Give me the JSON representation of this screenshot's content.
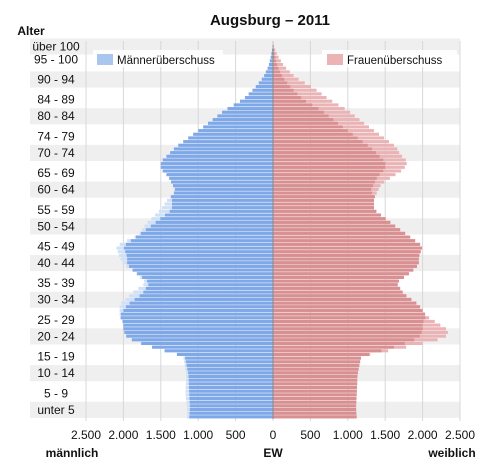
{
  "chart_data": {
    "type": "bar",
    "orientation": "horizontal",
    "title": "Augsburg – 2011",
    "y_axis_title": "Alter",
    "x_axis_unit": "EW",
    "x_left_label": "männlich",
    "x_right_label": "weiblich",
    "xlim": [
      -2500,
      2500
    ],
    "x_ticks": [
      "2.500",
      "2.000",
      "1.500",
      "1.000",
      "500",
      "0",
      "500",
      "1.000",
      "1.500",
      "2.000",
      "2.500"
    ],
    "grid": true,
    "legend_placement": "top",
    "age_range": [
      0,
      103
    ],
    "age_group_labels": [
      "über 100",
      "95 - 100",
      "90 - 94",
      "84 - 89",
      "80 - 84",
      "74 - 79",
      "70 - 74",
      "65 - 69",
      "60 - 64",
      "55 - 59",
      "50 - 54",
      "45 - 49",
      "40 - 44",
      "35 - 39",
      "30 - 34",
      "25 - 29",
      "20 - 24",
      "15 - 19",
      "10 - 14",
      "5 - 9",
      "unter 5"
    ],
    "age_group_label_ages": [
      101.5,
      98,
      92.5,
      87,
      82.5,
      77,
      72.5,
      67,
      62.5,
      57,
      52.5,
      47,
      42.5,
      37,
      32.5,
      27,
      22.5,
      17,
      12.5,
      7,
      2.5
    ],
    "series": [
      {
        "name": "Männerüberschuss",
        "color": "#cfe0f7",
        "overlay_color": "#7ea8e8",
        "age_points": [
          0,
          3,
          7,
          12,
          17,
          20,
          22,
          24,
          26,
          28,
          31,
          34,
          37,
          40,
          42,
          44,
          47,
          50,
          53,
          57,
          60,
          62,
          64,
          66,
          68,
          70,
          72,
          74,
          77,
          80,
          84,
          87,
          90,
          93,
          96,
          99,
          101,
          103
        ],
        "values": [
          1150,
          1150,
          1170,
          1160,
          1200,
          1700,
          1950,
          2000,
          2000,
          2050,
          2050,
          1900,
          1700,
          1850,
          2000,
          2050,
          2100,
          1800,
          1700,
          1500,
          1400,
          1300,
          1350,
          1400,
          1500,
          1500,
          1400,
          1300,
          1100,
          900,
          650,
          400,
          250,
          130,
          60,
          25,
          10,
          0
        ]
      },
      {
        "name": "Frauenüberschuss",
        "color": "#eab3b5",
        "overlay_color": "#d99092",
        "age_points": [
          0,
          3,
          7,
          12,
          17,
          20,
          22,
          24,
          26,
          28,
          31,
          34,
          37,
          40,
          42,
          44,
          47,
          50,
          53,
          57,
          60,
          62,
          64,
          66,
          68,
          70,
          72,
          74,
          77,
          80,
          84,
          87,
          90,
          93,
          96,
          99,
          101,
          103
        ],
        "values": [
          1120,
          1110,
          1120,
          1130,
          1180,
          1900,
          2300,
          2350,
          2200,
          2050,
          1950,
          1750,
          1650,
          1850,
          1950,
          1950,
          2000,
          1800,
          1600,
          1350,
          1350,
          1400,
          1450,
          1600,
          1750,
          1800,
          1700,
          1650,
          1450,
          1250,
          1000,
          750,
          550,
          300,
          150,
          60,
          20,
          0
        ]
      }
    ]
  }
}
